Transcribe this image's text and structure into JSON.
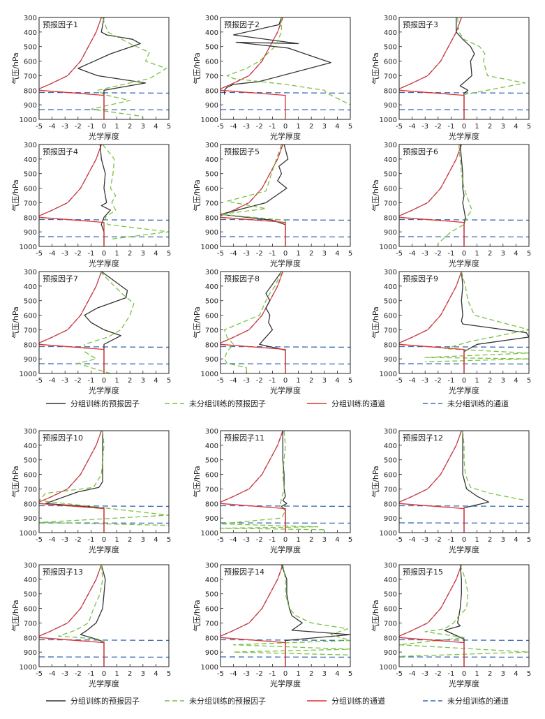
{
  "figure": {
    "xlabel": "光学厚度",
    "ylabel": "气压/hPa",
    "xticks": [
      -5,
      -4,
      -3,
      -2,
      -1,
      0,
      1,
      2,
      3,
      4,
      5
    ],
    "yticks": [
      300,
      400,
      500,
      600,
      700,
      800,
      900,
      1000
    ]
  },
  "legend": {
    "items": [
      {
        "key": "grouped_predictor",
        "label": "分组训练的预报因子",
        "color": "#333333",
        "dash": "solid"
      },
      {
        "key": "ungrouped_predictor",
        "label": "未分组训练的预报因子",
        "color": "#7ac143",
        "dash": "dashed"
      },
      {
        "key": "grouped_channel",
        "label": "分组训练的通道",
        "color": "#e0302e",
        "dash": "solid"
      },
      {
        "key": "ungrouped_channel",
        "label": "未分组训练的通道",
        "color": "#3a6ab4",
        "dash": "dashed"
      }
    ]
  },
  "chart_data": [
    {
      "type": "line",
      "title": "预报因子1",
      "xlim": [
        -5,
        5
      ],
      "ylim": [
        300,
        1000
      ],
      "series": [
        {
          "name": "grouped_predictor",
          "x": [
            0,
            -0.2,
            0.2,
            2.2,
            2.8,
            0.5,
            -2,
            -0.5,
            3.2,
            0,
            0,
            0
          ],
          "y": [
            300,
            400,
            420,
            450,
            480,
            550,
            650,
            700,
            750,
            800,
            850,
            1000
          ]
        },
        {
          "name": "ungrouped_predictor",
          "x": [
            -0.1,
            0.3,
            2,
            3.5,
            3.2,
            4.8,
            3.5,
            -0.5,
            0,
            2,
            -1,
            3
          ],
          "y": [
            300,
            400,
            480,
            540,
            600,
            650,
            720,
            800,
            830,
            870,
            930,
            980
          ]
        }
      ]
    },
    {
      "type": "line",
      "title": "预报因子2",
      "xlim": [
        -5,
        5
      ],
      "ylim": [
        300,
        1000
      ],
      "series": [
        {
          "name": "grouped_predictor",
          "x": [
            -0.3,
            -0.5,
            -4,
            1,
            -3.8,
            0.2,
            3.5,
            -2,
            -4,
            -4.5,
            -4.7,
            -4.7
          ],
          "y": [
            300,
            350,
            420,
            480,
            470,
            510,
            610,
            740,
            760,
            780,
            800,
            830
          ]
        },
        {
          "name": "ungrouped_predictor",
          "x": [
            -0.3,
            -0.3,
            -0.8,
            -2,
            -3,
            -4.5,
            -4,
            0,
            3,
            3.2,
            5
          ],
          "y": [
            300,
            400,
            500,
            600,
            650,
            700,
            720,
            760,
            800,
            820,
            900
          ]
        }
      ]
    },
    {
      "type": "line",
      "title": "预报因子3",
      "xlim": [
        -5,
        5
      ],
      "ylim": [
        300,
        1000
      ],
      "series": [
        {
          "name": "grouped_predictor",
          "x": [
            -0.6,
            -0.6,
            -0.1,
            0.5,
            0.8,
            0.5,
            0.6,
            -0.3,
            0.3,
            0,
            0,
            0
          ],
          "y": [
            300,
            400,
            450,
            500,
            550,
            600,
            700,
            770,
            800,
            820,
            850,
            1000
          ]
        },
        {
          "name": "ungrouped_predictor",
          "x": [
            -0.5,
            -0.4,
            0,
            1.2,
            1.6,
            1.5,
            1.8,
            4.7,
            1.8,
            0
          ],
          "y": [
            300,
            400,
            450,
            500,
            550,
            600,
            700,
            750,
            800,
            830
          ]
        }
      ]
    },
    {
      "type": "line",
      "title": "预报因子4",
      "xlim": [
        -5,
        5
      ],
      "ylim": [
        300,
        1000
      ],
      "series": [
        {
          "name": "grouped_predictor",
          "x": [
            -0.3,
            -0.2,
            0.1,
            0,
            0.1,
            0.2,
            -0.2,
            0.5,
            0,
            -0.2,
            0,
            0
          ],
          "y": [
            300,
            400,
            500,
            600,
            650,
            700,
            720,
            750,
            800,
            850,
            900,
            1000
          ]
        },
        {
          "name": "ungrouped_predictor",
          "x": [
            -0.1,
            0.8,
            0.7,
            0.5,
            0.9,
            0.6,
            0.9,
            0.1,
            0.3,
            5,
            0.5
          ],
          "y": [
            300,
            400,
            500,
            600,
            650,
            700,
            750,
            800,
            850,
            900,
            950
          ]
        }
      ]
    },
    {
      "type": "line",
      "title": "预报因子5",
      "xlim": [
        -5,
        5
      ],
      "ylim": [
        300,
        1000
      ],
      "series": [
        {
          "name": "grouped_predictor",
          "x": [
            -0.1,
            0.2,
            -0.5,
            -0.3,
            -0.6,
            0.1,
            -0.7,
            -1.5,
            -5,
            -1,
            0,
            0,
            0
          ],
          "y": [
            300,
            400,
            450,
            500,
            550,
            600,
            650,
            700,
            780,
            820,
            850,
            900,
            1000
          ]
        },
        {
          "name": "ungrouped_predictor",
          "x": [
            -0.3,
            -1,
            -1.5,
            -4.5,
            -1.5,
            -5,
            0,
            0
          ],
          "y": [
            300,
            480,
            620,
            690,
            740,
            780,
            820,
            850
          ]
        }
      ]
    },
    {
      "type": "line",
      "title": "预报因子6",
      "xlim": [
        -5,
        5
      ],
      "ylim": [
        300,
        1000
      ],
      "series": [
        {
          "name": "grouped_predictor",
          "x": [
            -0.3,
            -0.2,
            -0.1,
            -0.1,
            0,
            -0.1,
            0,
            0.1,
            0,
            0,
            0
          ],
          "y": [
            300,
            400,
            500,
            600,
            650,
            700,
            750,
            800,
            850,
            900,
            1000
          ]
        },
        {
          "name": "ungrouped_predictor",
          "x": [
            -0.4,
            -0.3,
            -0.2,
            0,
            0.2,
            0.6,
            0.2,
            0,
            -1,
            -2
          ],
          "y": [
            300,
            400,
            500,
            600,
            650,
            750,
            800,
            850,
            900,
            980
          ]
        }
      ]
    },
    {
      "type": "line",
      "title": "预报因子7",
      "xlim": [
        -5,
        5
      ],
      "ylim": [
        300,
        1000
      ],
      "series": [
        {
          "name": "grouped_predictor",
          "x": [
            -0.2,
            1.8,
            1.7,
            -0.5,
            -1.5,
            -1,
            0,
            1.3,
            0,
            0,
            0
          ],
          "y": [
            300,
            430,
            480,
            550,
            600,
            650,
            700,
            740,
            800,
            850,
            1000
          ]
        },
        {
          "name": "ungrouped_predictor",
          "x": [
            -0.3,
            0.8,
            1.5,
            2.3,
            2,
            1.3,
            0.3,
            -1.5,
            -1.5,
            -0.6,
            -2,
            -1,
            0.5
          ],
          "y": [
            300,
            400,
            460,
            520,
            600,
            700,
            750,
            800,
            850,
            900,
            930,
            960,
            1000
          ]
        }
      ]
    },
    {
      "type": "line",
      "title": "预报因子8",
      "xlim": [
        -5,
        5
      ],
      "ylim": [
        300,
        1000
      ],
      "series": [
        {
          "name": "grouped_predictor",
          "x": [
            -0.3,
            -1.5,
            -1.2,
            -1.5,
            -1.2,
            -1.3,
            -1,
            -2,
            0,
            0,
            0
          ],
          "y": [
            300,
            450,
            500,
            550,
            600,
            650,
            700,
            800,
            840,
            900,
            1000
          ]
        },
        {
          "name": "ungrouped_predictor",
          "x": [
            -0.3,
            -0.8,
            -1.2,
            -1.5,
            -2,
            -4.7,
            -4.5,
            -4,
            -4.5,
            -4.7,
            -4.5,
            -3,
            -3
          ],
          "y": [
            300,
            400,
            450,
            500,
            600,
            700,
            750,
            800,
            850,
            900,
            930,
            960,
            1000
          ]
        }
      ]
    },
    {
      "type": "line",
      "title": "预报因子9",
      "xlim": [
        -5,
        5
      ],
      "ylim": [
        300,
        1000
      ],
      "series": [
        {
          "name": "grouped_predictor",
          "x": [
            -0.2,
            -0.1,
            -0.2,
            -0.1,
            -0.2,
            -0.1,
            4.8,
            5,
            1,
            0,
            0,
            0
          ],
          "y": [
            300,
            400,
            500,
            600,
            640,
            660,
            720,
            750,
            800,
            850,
            900,
            1000
          ]
        },
        {
          "name": "ungrouped_predictor",
          "x": [
            -0.2,
            0.1,
            0.3,
            0.8,
            5,
            0.5,
            -1.5,
            5,
            -3,
            5,
            -3
          ],
          "y": [
            300,
            400,
            500,
            600,
            700,
            780,
            830,
            860,
            890,
            900,
            920
          ]
        }
      ]
    },
    {
      "type": "line",
      "title": "预报因子10",
      "xlim": [
        -5,
        5
      ],
      "ylim": [
        300,
        1000
      ],
      "series": [
        {
          "name": "grouped_predictor",
          "x": [
            -0.1,
            -0.1,
            -0.1,
            -0.1,
            -0.1,
            -0.4,
            -2,
            -4.5,
            0,
            0
          ],
          "y": [
            300,
            400,
            500,
            600,
            650,
            690,
            720,
            800,
            830,
            1000
          ]
        },
        {
          "name": "ungrouped_predictor",
          "x": [
            -0.1,
            0,
            -0.2,
            -0.8,
            -4.5,
            -5,
            5,
            -5,
            5
          ],
          "y": [
            300,
            400,
            600,
            690,
            730,
            780,
            880,
            930,
            950
          ]
        }
      ]
    },
    {
      "type": "line",
      "title": "预报因子11",
      "xlim": [
        -5,
        5
      ],
      "ylim": [
        300,
        1000
      ],
      "series": [
        {
          "name": "grouped_predictor",
          "x": [
            -0.2,
            -0.2,
            -0.2,
            -0.1,
            -0.1,
            0,
            -0.2,
            0.1,
            -0.3,
            0,
            0,
            0
          ],
          "y": [
            300,
            400,
            500,
            600,
            700,
            750,
            780,
            800,
            820,
            850,
            900,
            1000
          ]
        },
        {
          "name": "ungrouped_predictor",
          "x": [
            -0.1,
            0,
            -0.1,
            -0.2,
            -0.1,
            -0.4,
            0,
            -0.3,
            -5,
            2.5,
            -5,
            3
          ],
          "y": [
            300,
            400,
            500,
            600,
            700,
            800,
            850,
            900,
            940,
            960,
            970,
            980
          ]
        }
      ]
    },
    {
      "type": "line",
      "title": "预报因子12",
      "xlim": [
        -5,
        5
      ],
      "ylim": [
        300,
        1000
      ],
      "series": [
        {
          "name": "grouped_predictor",
          "x": [
            -0.1,
            -0.1,
            -0.1,
            -0.1,
            0.2,
            1,
            1.9,
            0,
            0,
            0
          ],
          "y": [
            300,
            400,
            500,
            600,
            700,
            750,
            790,
            830,
            850,
            1000
          ]
        },
        {
          "name": "ungrouped_predictor",
          "x": [
            -0.1,
            0,
            0,
            0.1,
            0.5,
            2,
            4.8
          ],
          "y": [
            300,
            400,
            500,
            600,
            690,
            730,
            780
          ]
        }
      ]
    },
    {
      "type": "line",
      "title": "预报因子13",
      "xlim": [
        -5,
        5
      ],
      "ylim": [
        300,
        1000
      ],
      "series": [
        {
          "name": "grouped_predictor",
          "x": [
            -0.2,
            0.1,
            0,
            -0.1,
            -0.6,
            -1.3,
            -1.8,
            -1,
            0,
            0,
            0
          ],
          "y": [
            300,
            400,
            500,
            600,
            700,
            750,
            780,
            800,
            830,
            900,
            1000
          ]
        },
        {
          "name": "ungrouped_predictor",
          "x": [
            -0.2,
            -0.1,
            -0.3,
            -0.8,
            -1.2,
            -2.2,
            -3.5,
            -0.5,
            0
          ],
          "y": [
            300,
            400,
            500,
            600,
            700,
            750,
            790,
            810,
            830
          ]
        }
      ]
    },
    {
      "type": "line",
      "title": "预报因子14",
      "xlim": [
        -5,
        5
      ],
      "ylim": [
        300,
        1000
      ],
      "series": [
        {
          "name": "grouped_predictor",
          "x": [
            -0.3,
            0.1,
            0.1,
            0.3,
            0.5,
            1.3,
            0.5,
            5,
            0,
            0,
            0
          ],
          "y": [
            300,
            400,
            500,
            600,
            650,
            700,
            750,
            780,
            820,
            860,
            1000
          ]
        },
        {
          "name": "ungrouped_predictor",
          "x": [
            -0.2,
            0,
            0,
            0.3,
            0.8,
            2,
            4.8,
            3.5,
            5,
            -4,
            5,
            -4,
            5
          ],
          "y": [
            300,
            400,
            500,
            600,
            650,
            700,
            740,
            780,
            820,
            850,
            880,
            900,
            920
          ]
        }
      ]
    },
    {
      "type": "line",
      "title": "预报因子15",
      "xlim": [
        -5,
        5
      ],
      "ylim": [
        300,
        1000
      ],
      "series": [
        {
          "name": "grouped_predictor",
          "x": [
            -0.3,
            -0.2,
            -0.2,
            -0.3,
            -0.4,
            -0.5,
            -0.3,
            -1.5,
            0,
            0,
            0
          ],
          "y": [
            300,
            400,
            500,
            600,
            650,
            700,
            720,
            750,
            810,
            850,
            1000
          ]
        },
        {
          "name": "ungrouped_predictor",
          "x": [
            -0.3,
            0.1,
            0.3,
            0.2,
            -0.4,
            -0.8,
            -1.5,
            -3,
            0,
            -5,
            5,
            -5
          ],
          "y": [
            300,
            400,
            500,
            600,
            650,
            700,
            740,
            760,
            800,
            850,
            900,
            930
          ]
        }
      ]
    }
  ]
}
